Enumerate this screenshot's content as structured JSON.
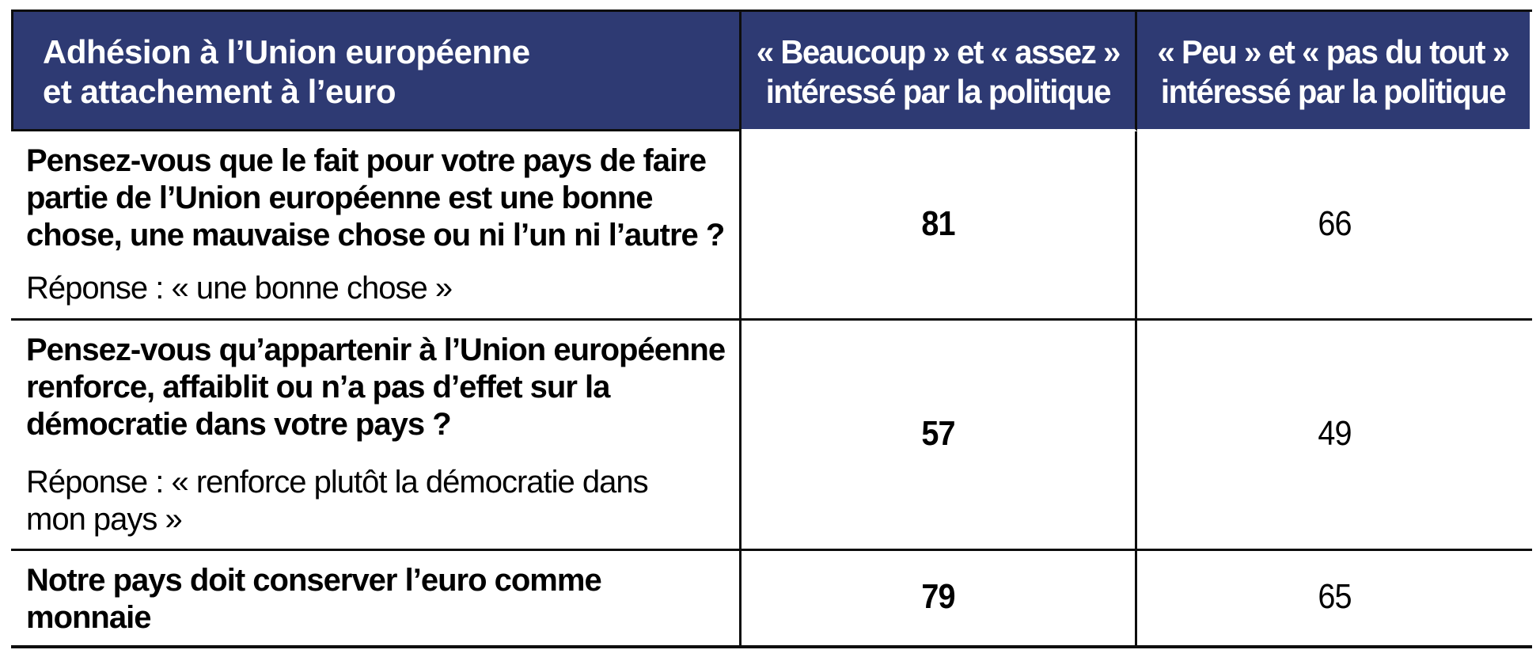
{
  "colors": {
    "header_bg": "#2E3A73",
    "border": "#0d0d0d",
    "header_text": "#ffffff",
    "body_text": "#000000"
  },
  "table": {
    "header": {
      "col1": "Adhésion à l’Union européenne\net attachement à l’euro",
      "col2": "« Beaucoup » et « assez »\nintéressé par la politique",
      "col3": "« Peu » et « pas du tout »\nintéressé par la politique"
    },
    "rows": [
      {
        "question": "Pensez-vous que le fait pour votre pays de faire\npartie de l’Union européenne est une bonne\nchose, une mauvaise chose ou ni l’un ni l’autre ?",
        "answer": "Réponse : « une bonne chose »",
        "interested": "81",
        "not_interested": "66"
      },
      {
        "question": "Pensez-vous qu’appartenir à l’Union européenne\nrenforce, affaiblit ou n’a pas d’effet sur la\ndémocratie dans votre pays ?",
        "answer": "Réponse : « renforce plutôt la démocratie dans\nmon pays »",
        "interested": "57",
        "not_interested": "49"
      },
      {
        "question": "Notre pays doit conserver l’euro comme\nmonnaie",
        "answer": "",
        "interested": "79",
        "not_interested": "65"
      }
    ]
  },
  "chart_data": {
    "type": "table",
    "title": "Adhésion à l’Union européenne et attachement à l’euro",
    "columns": [
      "« Beaucoup » et « assez » intéressé par la politique",
      "« Peu » et « pas du tout » intéressé par la politique"
    ],
    "row_labels": [
      "Pensez-vous que le fait pour votre pays de faire partie de l’Union européenne est une bonne chose, une mauvaise chose ou ni l’un ni l’autre ? Réponse : « une bonne chose »",
      "Pensez-vous qu’appartenir à l’Union européenne renforce, affaiblit ou n’a pas d’effet sur la démocratie dans votre pays ? Réponse : « renforce plutôt la démocratie dans mon pays »",
      "Notre pays doit conserver l’euro comme monnaie"
    ],
    "series": [
      {
        "name": "« Beaucoup » et « assez » intéressé par la politique",
        "values": [
          81,
          57,
          79
        ]
      },
      {
        "name": "« Peu » et « pas du tout » intéressé par la politique",
        "values": [
          66,
          49,
          65
        ]
      }
    ]
  }
}
